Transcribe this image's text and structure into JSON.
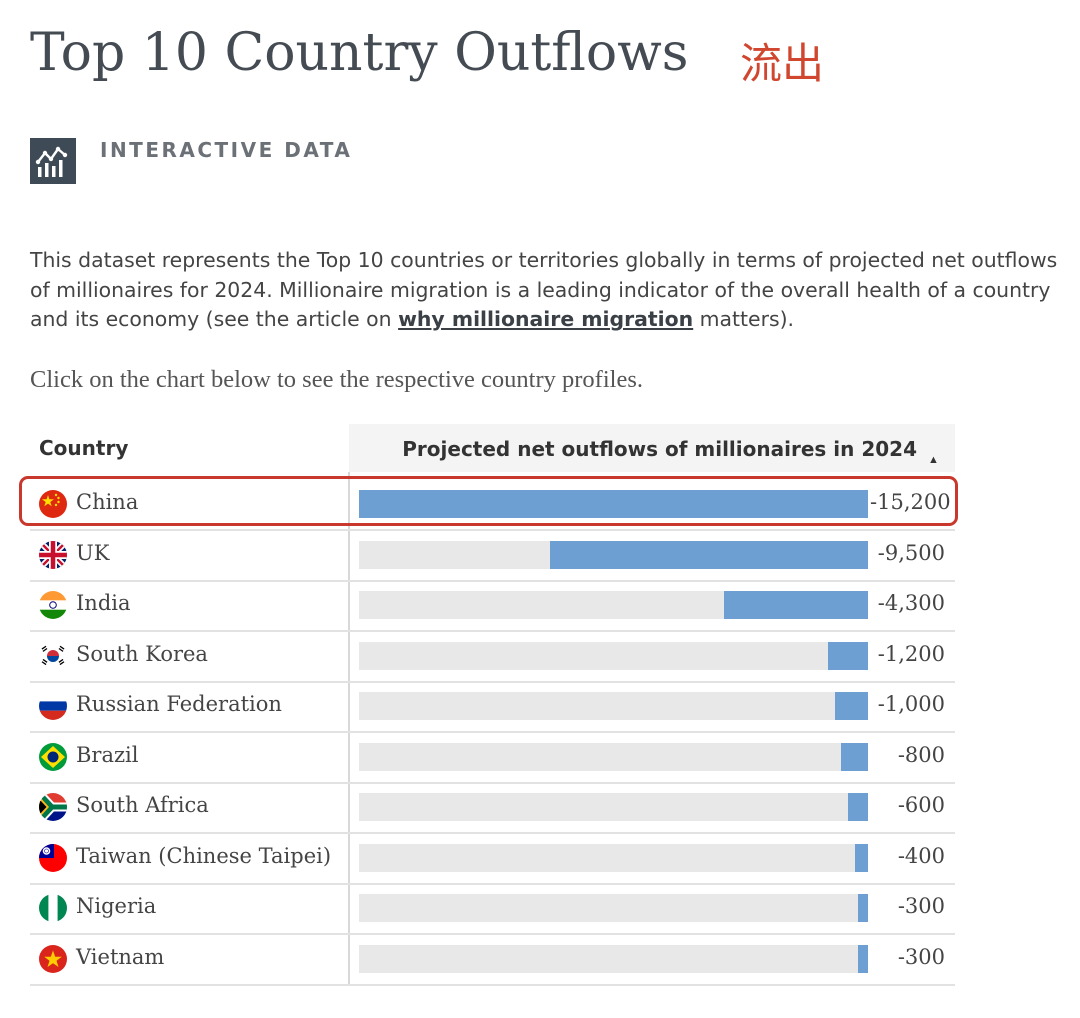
{
  "header": {
    "title": "Top 10 Country Outflows",
    "cn_tag": "流出",
    "badge_label": "INTERACTIVE DATA"
  },
  "description": {
    "part1": "This dataset represents the Top 10 countries or territories globally in terms of projected net outflows of millionaires for 2024. Millionaire migration is a leading indicator of the overall health of a country and its economy (see the article on ",
    "link": "why millionaire migration",
    "part2": " matters)."
  },
  "hint": "Click on the chart below to see the respective country profiles.",
  "table": {
    "col_country": "Country",
    "col_metric": "Projected net outflows of millionaires in 2024",
    "sort": "▲",
    "highlighted_row": "China"
  },
  "colors": {
    "bar": "#6d9fd2",
    "track": "#e8e8e8",
    "highlight": "#c8382d",
    "cn_tag": "#d0462f"
  },
  "chart_data": {
    "type": "bar",
    "orientation": "horizontal",
    "title": "Projected net outflows of millionaires in 2024",
    "categories": [
      "China",
      "UK",
      "India",
      "South Korea",
      "Russian Federation",
      "Brazil",
      "South Africa",
      "Taiwan (Chinese Taipei)",
      "Nigeria",
      "Vietnam"
    ],
    "values": [
      -15200,
      -9500,
      -4300,
      -1200,
      -1000,
      -800,
      -600,
      -400,
      -300,
      -300
    ],
    "value_labels": [
      "-15,200",
      "-9,500",
      "-4,300",
      "-1,200",
      "-1,000",
      "-800",
      "-600",
      "-400",
      "-300",
      "-300"
    ],
    "range": [
      -15200,
      0
    ]
  }
}
